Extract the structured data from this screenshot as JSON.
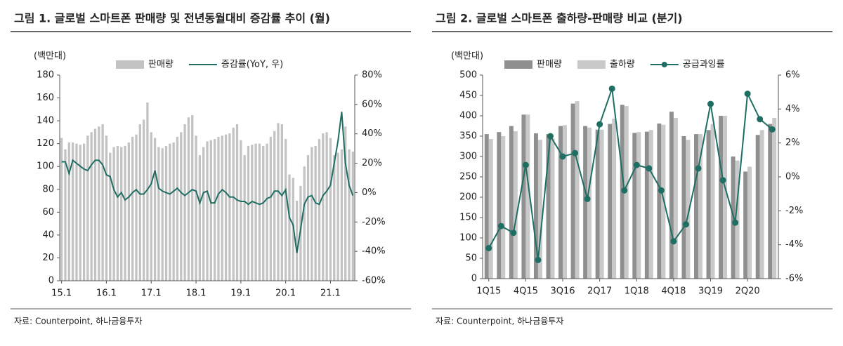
{
  "chart_data": [
    {
      "type": "combo",
      "title": "그림 1. 글로벌 스마트폰 판매량 및 전년동월대비 증감률 추이 (월)",
      "y_label": "(백만대)",
      "source": "자료: Counterpoint, 하나금융투자",
      "categories": [
        "15.1",
        null,
        null,
        null,
        null,
        null,
        null,
        null,
        null,
        null,
        null,
        null,
        "16.1",
        null,
        null,
        null,
        null,
        null,
        null,
        null,
        null,
        null,
        null,
        null,
        "17.1",
        null,
        null,
        null,
        null,
        null,
        null,
        null,
        null,
        null,
        null,
        null,
        "18.1",
        null,
        null,
        null,
        null,
        null,
        null,
        null,
        null,
        null,
        null,
        null,
        "19.1",
        null,
        null,
        null,
        null,
        null,
        null,
        null,
        null,
        null,
        null,
        null,
        "20.1",
        null,
        null,
        null,
        null,
        null,
        null,
        null,
        null,
        null,
        null,
        null,
        "21.1",
        null,
        null,
        null,
        null,
        null,
        null
      ],
      "series": [
        {
          "name": "판매량",
          "type": "bar",
          "color": "#c3c3c3",
          "values": [
            125,
            115,
            121,
            121,
            120,
            119,
            120,
            127,
            130,
            133,
            135,
            137,
            127,
            112,
            117,
            118,
            117,
            118,
            121,
            126,
            128,
            137,
            141,
            156,
            130,
            125,
            117,
            116,
            118,
            120,
            121,
            126,
            130,
            137,
            143,
            145,
            127,
            110,
            117,
            122,
            123,
            124,
            126,
            127,
            128,
            129,
            134,
            137,
            123,
            110,
            118,
            119,
            120,
            120,
            118,
            120,
            126,
            131,
            138,
            137,
            124,
            93,
            90,
            70,
            83,
            100,
            110,
            117,
            118,
            124,
            129,
            130,
            125,
            110,
            112,
            115,
            135,
            115,
            113
          ]
        },
        {
          "name": "증감률(YoY, 우)",
          "type": "line",
          "axis": "y2",
          "color": "#1f6e63",
          "values": [
            21,
            21,
            13,
            22,
            20,
            18,
            16,
            15,
            19,
            22,
            22,
            19,
            12,
            11,
            2,
            -3,
            0,
            -5,
            -3,
            0,
            2,
            -1,
            -1,
            2,
            6,
            15,
            3,
            1,
            0,
            -1,
            1,
            3,
            0,
            -2,
            0,
            2,
            1,
            -7,
            0,
            1,
            -7,
            -7,
            -1,
            2,
            0,
            -3,
            -3,
            -5,
            -6,
            -6,
            -8,
            -6,
            -7,
            -8,
            -7,
            -4,
            -3,
            1,
            1,
            -2,
            2,
            -17,
            -22,
            -41,
            -25,
            -8,
            -3,
            -2,
            -7,
            -8,
            -2,
            1,
            5,
            20,
            35,
            55,
            20,
            5,
            -2
          ]
        }
      ],
      "ylim": [
        0,
        180
      ],
      "yticks": [
        0,
        20,
        40,
        60,
        80,
        100,
        120,
        140,
        160,
        180
      ],
      "y2lim": [
        -60,
        80
      ],
      "y2ticks": [
        {
          "value": -60,
          "label": "-60%"
        },
        {
          "value": -40,
          "label": "-40%"
        },
        {
          "value": -20,
          "label": "-20%"
        },
        {
          "value": 0,
          "label": "0%"
        },
        {
          "value": 20,
          "label": "20%"
        },
        {
          "value": 40,
          "label": "40%"
        },
        {
          "value": 60,
          "label": "60%"
        },
        {
          "value": 80,
          "label": "80%"
        }
      ]
    },
    {
      "type": "combo",
      "title": "그림 2. 글로벌 스마트폰 출하량-판매량 비교 (분기)",
      "y_label": "(백만대)",
      "source": "자료: Counterpoint, 하나금융투자",
      "categories": [
        "1Q15",
        null,
        null,
        "4Q15",
        null,
        null,
        "3Q16",
        null,
        null,
        "2Q17",
        null,
        null,
        "1Q18",
        null,
        null,
        "4Q18",
        null,
        null,
        "3Q19",
        null,
        null,
        "2Q20",
        null,
        null
      ],
      "series": [
        {
          "name": "판매량",
          "type": "bar",
          "color": "#8f8f8f",
          "values": [
            355,
            360,
            375,
            403,
            357,
            355,
            375,
            430,
            375,
            366,
            380,
            427,
            358,
            361,
            381,
            410,
            350,
            355,
            365,
            400,
            300,
            263,
            353,
            380
          ]
        },
        {
          "name": "출하량",
          "type": "bar",
          "color": "#c9c9c9",
          "values": [
            343,
            350,
            362,
            403,
            341,
            345,
            377,
            436,
            371,
            366,
            393,
            424,
            360,
            365,
            378,
            395,
            341,
            355,
            380,
            400,
            290,
            275,
            365,
            395
          ]
        },
        {
          "name": "공급과잉률",
          "type": "line",
          "axis": "y2",
          "markers": true,
          "color": "#1f6e63",
          "values": [
            -4.2,
            -2.9,
            -3.3,
            0.7,
            -4.9,
            2.4,
            1.2,
            1.4,
            -1.3,
            3.1,
            5.2,
            -0.8,
            0.7,
            0.5,
            -0.8,
            -3.8,
            -2.8,
            0.5,
            4.3,
            -0.2,
            -2.7,
            4.9,
            3.4,
            2.8
          ]
        }
      ],
      "ylim": [
        0,
        500
      ],
      "yticks": [
        0,
        50,
        100,
        150,
        200,
        250,
        300,
        350,
        400,
        450,
        500
      ],
      "y2lim": [
        -6,
        6
      ],
      "y2ticks": [
        {
          "value": -6,
          "label": "-6%"
        },
        {
          "value": -4,
          "label": "-4%"
        },
        {
          "value": -2,
          "label": "-2%"
        },
        {
          "value": 0,
          "label": "0%"
        },
        {
          "value": 2,
          "label": "2%"
        },
        {
          "value": 4,
          "label": "4%"
        },
        {
          "value": 6,
          "label": "6%"
        }
      ]
    }
  ]
}
